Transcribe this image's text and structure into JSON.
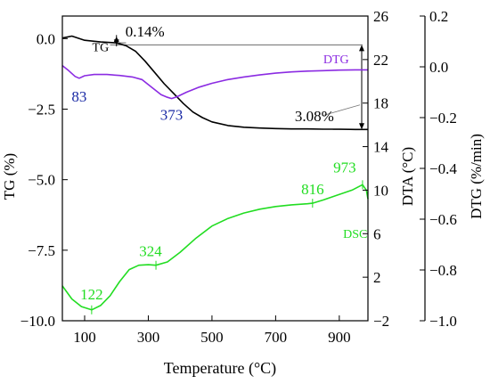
{
  "chart_data": {
    "type": "line",
    "xlabel": "Temperature (°C)",
    "x_ticks": [
      100,
      300,
      500,
      700,
      900
    ],
    "xlim": [
      30,
      990
    ],
    "axes": {
      "tg": {
        "label": "TG (%)",
        "ticks": [
          0.0,
          -2.5,
          -5.0,
          -7.5,
          -10.0
        ],
        "tick_labels": [
          "0.0",
          "−2.5",
          "−5.0",
          "−7.5",
          "−10.0"
        ],
        "range": [
          -10.0,
          0.8
        ]
      },
      "dta": {
        "label": "DTA (°C)",
        "ticks": [
          26,
          22,
          18,
          14,
          10,
          6,
          2,
          -2
        ],
        "tick_labels": [
          "26",
          "22",
          "18",
          "14",
          "10",
          "6",
          "2",
          "−2"
        ],
        "range": [
          -2,
          26
        ]
      },
      "dtg": {
        "label": "DTG (%/min)",
        "ticks": [
          0.2,
          0.0,
          -0.2,
          -0.4,
          -0.6,
          -0.8,
          -1.0
        ],
        "tick_labels": [
          "0.2",
          "0.0",
          "−0.2",
          "−0.4",
          "−0.6",
          "−0.8",
          "−1.0"
        ],
        "range": [
          -1.0,
          0.2
        ]
      }
    },
    "series": [
      {
        "name": "TG",
        "axis": "tg",
        "color": "#000000",
        "x": [
          30,
          60,
          100,
          150,
          200,
          230,
          260,
          290,
          320,
          350,
          380,
          410,
          440,
          470,
          500,
          550,
          600,
          650,
          700,
          750,
          800,
          850,
          900,
          950,
          990
        ],
        "y": [
          0.02,
          0.09,
          -0.06,
          -0.12,
          -0.15,
          -0.25,
          -0.45,
          -0.8,
          -1.2,
          -1.6,
          -1.95,
          -2.3,
          -2.6,
          -2.8,
          -2.95,
          -3.08,
          -3.14,
          -3.17,
          -3.19,
          -3.2,
          -3.2,
          -3.21,
          -3.21,
          -3.22,
          -3.22
        ]
      },
      {
        "name": "DTG",
        "axis": "dtg",
        "color": "#8b2be2",
        "x": [
          30,
          50,
          70,
          83,
          100,
          130,
          170,
          210,
          250,
          280,
          310,
          340,
          360,
          373,
          390,
          420,
          460,
          500,
          550,
          600,
          650,
          700,
          750,
          800,
          850,
          900,
          950,
          990
        ],
        "y": [
          0.005,
          -0.015,
          -0.038,
          -0.045,
          -0.035,
          -0.03,
          -0.03,
          -0.034,
          -0.04,
          -0.05,
          -0.08,
          -0.11,
          -0.12,
          -0.125,
          -0.118,
          -0.1,
          -0.08,
          -0.065,
          -0.05,
          -0.04,
          -0.032,
          -0.025,
          -0.02,
          -0.017,
          -0.015,
          -0.013,
          -0.012,
          -0.012
        ]
      },
      {
        "name": "DSC",
        "axis": "dta",
        "color": "#22dd22",
        "x": [
          30,
          60,
          90,
          122,
          150,
          180,
          210,
          240,
          270,
          300,
          324,
          360,
          400,
          450,
          500,
          550,
          600,
          650,
          700,
          750,
          800,
          816,
          850,
          900,
          940,
          973,
          985,
          990
        ],
        "y": [
          1.2,
          0.0,
          -0.7,
          -1.0,
          -0.6,
          0.3,
          1.6,
          2.7,
          3.1,
          3.15,
          3.1,
          3.4,
          4.3,
          5.6,
          6.7,
          7.4,
          7.9,
          8.25,
          8.5,
          8.65,
          8.75,
          8.8,
          9.1,
          9.6,
          10.0,
          10.5,
          10.0,
          9.2
        ]
      }
    ],
    "annotations": [
      {
        "text": "0.14%",
        "axis": "tg",
        "x": 200,
        "y": 0.07,
        "anchor": "start",
        "dx": 10,
        "dy": 0,
        "color": "#000000",
        "size": 17
      },
      {
        "text": "TG",
        "axis": "tg",
        "x": 150,
        "y": -0.45,
        "anchor": "middle",
        "dx": 0,
        "dy": 0,
        "color": "#000000",
        "size": 14
      },
      {
        "text": "DTG",
        "axis": "dtg",
        "x": 890,
        "y": 0.0,
        "anchor": "middle",
        "dx": 0,
        "dy": -4,
        "color": "#8b2be2",
        "size": 14
      },
      {
        "text": "83",
        "axis": "dtg",
        "x": 83,
        "y": -0.045,
        "anchor": "middle",
        "dx": 0,
        "dy": 26,
        "color": "#1a2aa5",
        "size": 17
      },
      {
        "text": "373",
        "axis": "dtg",
        "x": 373,
        "y": -0.125,
        "anchor": "middle",
        "dx": 0,
        "dy": 24,
        "color": "#1a2aa5",
        "size": 17
      },
      {
        "text": "3.08%",
        "axis": "tg",
        "x": 760,
        "y": -2.74,
        "anchor": "start",
        "dx": 0,
        "dy": 6,
        "color": "#000000",
        "size": 17
      },
      {
        "text": "122",
        "axis": "dta",
        "x": 122,
        "y": -1.0,
        "anchor": "middle",
        "dx": 0,
        "dy": -12,
        "color": "#22dd22",
        "size": 17
      },
      {
        "text": "324",
        "axis": "dta",
        "x": 324,
        "y": 3.1,
        "anchor": "middle",
        "dx": -6,
        "dy": -10,
        "color": "#22dd22",
        "size": 17
      },
      {
        "text": "816",
        "axis": "dta",
        "x": 816,
        "y": 8.8,
        "anchor": "middle",
        "dx": 0,
        "dy": -10,
        "color": "#22dd22",
        "size": 17
      },
      {
        "text": "973",
        "axis": "dta",
        "x": 973,
        "y": 10.5,
        "anchor": "middle",
        "dx": -20,
        "dy": -14,
        "color": "#22dd22",
        "size": 17
      },
      {
        "text": "DSC",
        "axis": "dta",
        "x": 950,
        "y": 5.6,
        "anchor": "middle",
        "dx": 0,
        "dy": 0,
        "color": "#22dd22",
        "size": 14
      }
    ],
    "grid": false,
    "legend": "none"
  }
}
